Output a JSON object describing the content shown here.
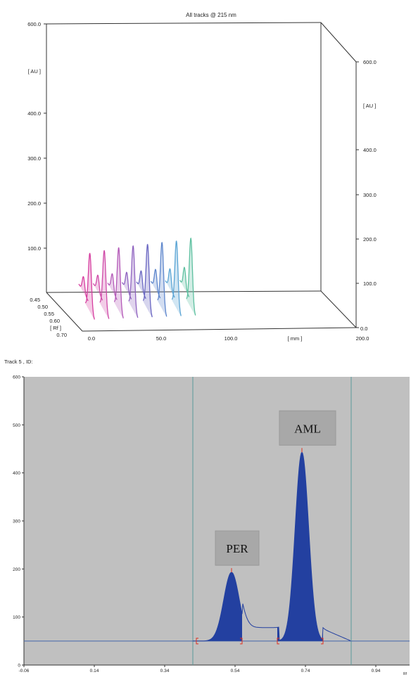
{
  "chart_data": [
    {
      "type": "area",
      "title": "All tracks @ 215 nm",
      "y_left": {
        "ticks": [
          "600.0",
          "[ AU ]",
          "400.0",
          "300.0",
          "200.0",
          "100.0"
        ],
        "range": [
          0,
          600
        ]
      },
      "y_right": {
        "ticks": [
          "600.0",
          "[ AU ]",
          "400.0",
          "300.0",
          "200.0",
          "100.0",
          "0.0"
        ],
        "range": [
          0,
          600
        ]
      },
      "x_axis": {
        "ticks": [
          "0.0",
          "50.0",
          "100.0",
          "[ mm ]",
          "200.0"
        ],
        "range": [
          0,
          200
        ]
      },
      "depth_axis": {
        "ticks": [
          "0.45",
          "0.50",
          "0.55",
          "0.60",
          "[ Rf ]",
          "0.70"
        ]
      },
      "tracks": [
        {
          "track": 1,
          "color": "#d63fa0",
          "per_au": 80,
          "aml_au": 185
        },
        {
          "track": 2,
          "color": "#cf4aa8",
          "per_au": 82,
          "aml_au": 190
        },
        {
          "track": 3,
          "color": "#b45ab8",
          "per_au": 84,
          "aml_au": 195
        },
        {
          "track": 4,
          "color": "#8f63c0",
          "per_au": 86,
          "aml_au": 198
        },
        {
          "track": 5,
          "color": "#6a67c2",
          "per_au": 88,
          "aml_au": 200
        },
        {
          "track": 6,
          "color": "#5d86cc",
          "per_au": 90,
          "aml_au": 203
        },
        {
          "track": 7,
          "color": "#5aa4d4",
          "per_au": 90,
          "aml_au": 205
        },
        {
          "track": 8,
          "color": "#5ec0a0",
          "per_au": 92,
          "aml_au": 210
        }
      ]
    },
    {
      "type": "area",
      "title": "Track 5 , ID:",
      "ylim": [
        0,
        600
      ],
      "xlim": [
        -0.06,
        1.0
      ],
      "y_ticks": [
        0,
        100,
        200,
        300,
        400,
        500,
        600
      ],
      "x_ticks": [
        "-0.06",
        "0.14",
        "0.34",
        "0.54",
        "0.74",
        "0.94"
      ],
      "x_tick_values": [
        -0.06,
        0.14,
        0.34,
        0.54,
        0.74,
        0.94
      ],
      "x_unit": "Rf",
      "baseline_au": 50,
      "plateau_au": 78,
      "vlines_rf": [
        0.42,
        0.87
      ],
      "peaks": [
        {
          "label": "PER",
          "rf": 0.53,
          "height_au": 193,
          "start_rf": 0.43,
          "end_rf": 0.56
        },
        {
          "label": "AML",
          "rf": 0.73,
          "height_au": 443,
          "start_rf": 0.66,
          "end_rf": 0.79
        }
      ],
      "colors": {
        "fill": "#2340a0",
        "background": "#c0c0c0",
        "baseline": "#4466aa",
        "vline": "#5a9a9a",
        "marker": "#e03020"
      }
    }
  ]
}
